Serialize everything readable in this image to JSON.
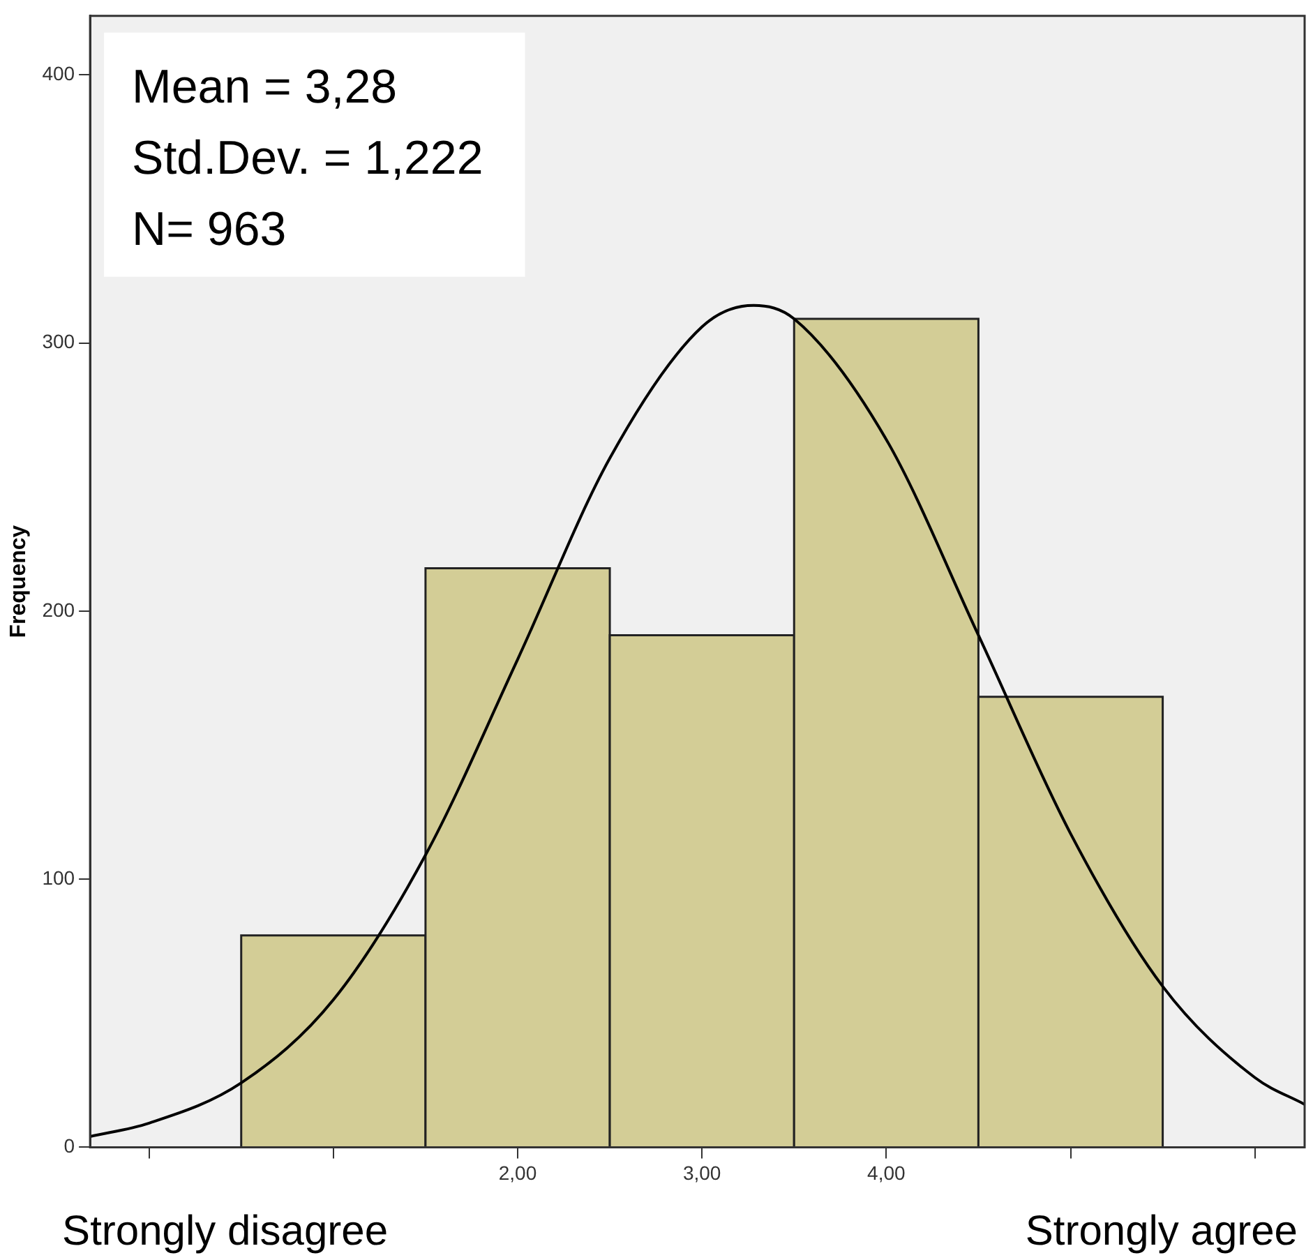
{
  "chart_data": {
    "type": "histogram",
    "ylabel": "Frequency",
    "bins": [
      0.5,
      1.5,
      2.5,
      3.5,
      4.5,
      5.5
    ],
    "values": [
      79,
      216,
      191,
      309,
      168
    ],
    "color": "#d3cd96",
    "series": [
      {
        "type": "line",
        "color": "#000000",
        "x": [
          -0.32,
          0,
          0.5,
          1,
          1.5,
          2,
          2.5,
          3,
          3.28,
          3.5,
          4,
          4.5,
          5,
          5.5,
          6,
          6.27
        ],
        "values": [
          4,
          9,
          24,
          55,
          109,
          182,
          257,
          306,
          314,
          309,
          264,
          191,
          117,
          60,
          26,
          16
        ]
      }
    ],
    "xlim": [
      -0.32,
      6.27
    ],
    "ylim": [
      0,
      422
    ],
    "xticks": [
      {
        "value": 0,
        "label": null
      },
      {
        "value": 1,
        "label": null
      },
      {
        "value": 2,
        "label": "2,00"
      },
      {
        "value": 3,
        "label": "3,00"
      },
      {
        "value": 4,
        "label": "4,00"
      },
      {
        "value": 5,
        "label": null
      },
      {
        "value": 6,
        "label": null
      }
    ],
    "yticks": [
      0,
      100,
      200,
      300,
      400
    ],
    "grid": false,
    "legend": false,
    "marker": "none",
    "line_style": "solid",
    "annotations": [
      "Mean = 3,28",
      "Std.Dev. = 1,222",
      "N= 963",
      "Strongly disagree",
      "Strongly agree"
    ]
  }
}
